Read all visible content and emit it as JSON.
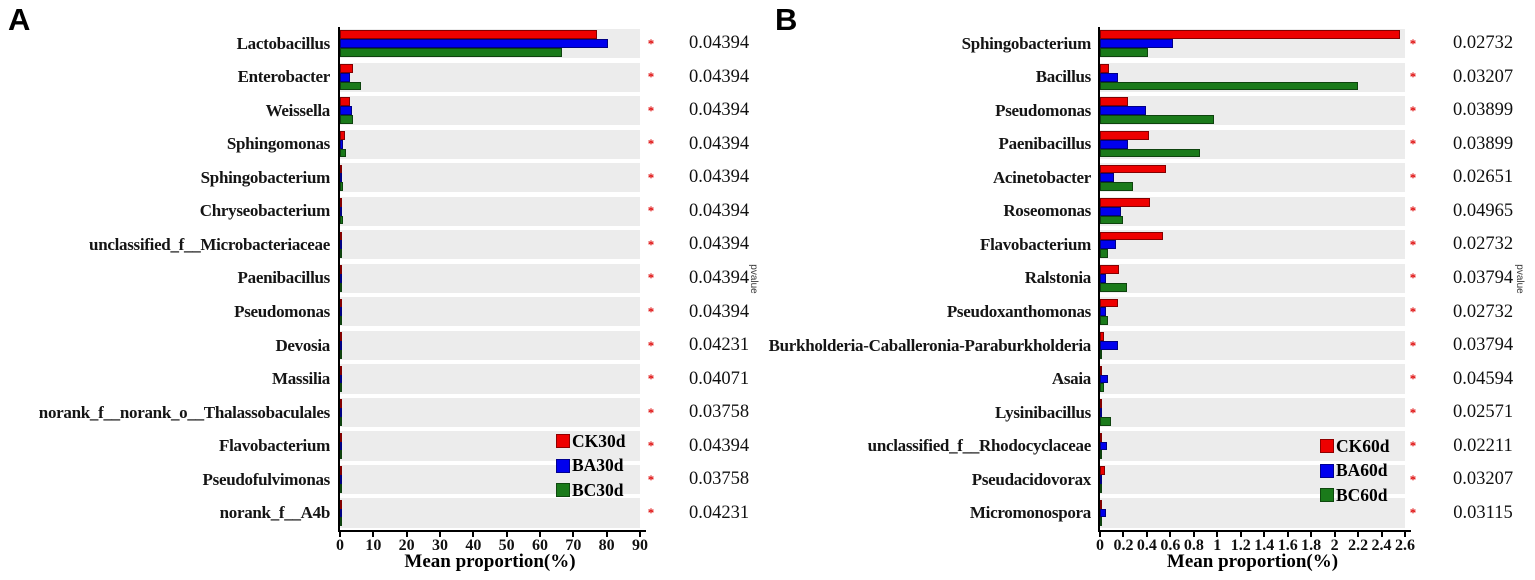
{
  "figure_title": "",
  "chart_data": [
    {
      "type": "bar",
      "orientation": "horizontal",
      "panel_label": "A",
      "title": "",
      "xlabel": "Mean proportion(%)",
      "right_axis_label": "pvalue",
      "significance_marker": "*",
      "xlim": [
        0,
        90
      ],
      "xticks": [
        0,
        10,
        20,
        30,
        40,
        50,
        60,
        70,
        80,
        90
      ],
      "xtick_labels": [
        "0",
        "10",
        "20",
        "30",
        "40",
        "50",
        "60",
        "70",
        "80",
        "90"
      ],
      "grid": false,
      "legend_position": "inside-bottom-right",
      "categories": [
        "Lactobacillus",
        "Enterobacter",
        "Weissella",
        "Sphingomonas",
        "Sphingobacterium",
        "Chryseobacterium",
        "unclassified_f__Microbacteriaceae",
        "Paenibacillus",
        "Pseudomonas",
        "Devosia",
        "Massilia",
        "norank_f__norank_o__Thalassobaculales",
        "Flavobacterium",
        "Pseudofulvimonas",
        "norank_f__A4b"
      ],
      "series": [
        {
          "name": "CK30d",
          "color": "#ee0000",
          "values": [
            77.0,
            3.8,
            3.0,
            1.4,
            0.5,
            0.3,
            0.2,
            0.4,
            0.3,
            0.15,
            0.2,
            0.1,
            0.15,
            0.1,
            0.05
          ]
        },
        {
          "name": "BA30d",
          "color": "#0000ee",
          "values": [
            80.5,
            2.9,
            3.5,
            0.9,
            0.15,
            0.1,
            0.1,
            0.1,
            0.1,
            0.05,
            0.05,
            0.05,
            0.05,
            0.03,
            0.02
          ]
        },
        {
          "name": "BC30d",
          "color": "#1a7a1a",
          "values": [
            66.5,
            6.3,
            4.0,
            1.8,
            1.0,
            0.9,
            0.5,
            0.2,
            0.2,
            0.3,
            0.15,
            0.35,
            0.1,
            0.2,
            0.15
          ]
        }
      ],
      "pvalues": [
        "0.04394",
        "0.04394",
        "0.04394",
        "0.04394",
        "0.04394",
        "0.04394",
        "0.04394",
        "0.04394",
        "0.04394",
        "0.04231",
        "0.04071",
        "0.03758",
        "0.04394",
        "0.03758",
        "0.04231"
      ]
    },
    {
      "type": "bar",
      "orientation": "horizontal",
      "panel_label": "B",
      "title": "",
      "xlabel": "Mean proportion(%)",
      "right_axis_label": "pvalue",
      "significance_marker": "*",
      "xlim": [
        0,
        2.6
      ],
      "xticks": [
        0,
        0.2,
        0.4,
        0.6,
        0.8,
        1,
        1.2,
        1.4,
        1.6,
        1.8,
        2,
        2.2,
        2.4,
        2.6
      ],
      "xtick_labels": [
        "0",
        "0.2",
        "0.4",
        "0.6",
        "0.8",
        "1",
        "1.2",
        "1.4",
        "1.6",
        "1.8",
        "2",
        "2.2",
        "2.4",
        "2.6"
      ],
      "grid": false,
      "legend_position": "inside-bottom-right",
      "categories": [
        "Sphingobacterium",
        "Bacillus",
        "Pseudomonas",
        "Paenibacillus",
        "Acinetobacter",
        "Roseomonas",
        "Flavobacterium",
        "Ralstonia",
        "Pseudoxanthomonas",
        "Burkholderia-Caballeronia-Paraburkholderia",
        "Asaia",
        "Lysinibacillus",
        "unclassified_f__Rhodocyclaceae",
        "Pseudacidovorax",
        "Micromonospora"
      ],
      "series": [
        {
          "name": "CK60d",
          "color": "#ee0000",
          "values": [
            2.56,
            0.08,
            0.24,
            0.42,
            0.56,
            0.43,
            0.54,
            0.16,
            0.15,
            0.03,
            0.02,
            0.01,
            0.01,
            0.04,
            0.005
          ]
        },
        {
          "name": "BA60d",
          "color": "#0000ee",
          "values": [
            0.62,
            0.15,
            0.39,
            0.24,
            0.12,
            0.18,
            0.14,
            0.05,
            0.05,
            0.15,
            0.07,
            0.005,
            0.06,
            0.005,
            0.05
          ]
        },
        {
          "name": "BC60d",
          "color": "#1a7a1a",
          "values": [
            0.41,
            2.2,
            0.97,
            0.85,
            0.28,
            0.2,
            0.07,
            0.23,
            0.07,
            0.02,
            0.03,
            0.09,
            0.005,
            0.01,
            0.005
          ]
        }
      ],
      "pvalues": [
        "0.02732",
        "0.03207",
        "0.03899",
        "0.03899",
        "0.02651",
        "0.04965",
        "0.02732",
        "0.03794",
        "0.02732",
        "0.03794",
        "0.04594",
        "0.02571",
        "0.02211",
        "0.03207",
        "0.03115"
      ]
    }
  ]
}
